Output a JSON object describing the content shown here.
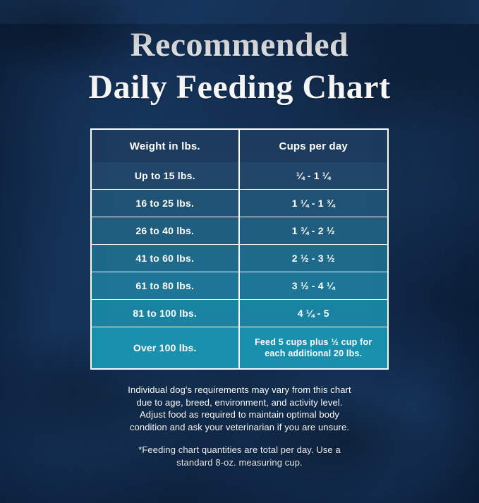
{
  "title": {
    "line1": "Recommended",
    "line2": "Daily Feeding Chart"
  },
  "chart_data": {
    "type": "table",
    "title": "Recommended Daily Feeding Chart",
    "columns": [
      "Weight in lbs.",
      "Cups per day"
    ],
    "rows": [
      [
        "Up to 15 lbs.",
        "¼ - 1 ¼"
      ],
      [
        "16 to 25 lbs.",
        "1 ¼  -  1 ¾"
      ],
      [
        "26 to 40 lbs.",
        "1 ¾  -  2 ½"
      ],
      [
        "41 to 60 lbs.",
        "2 ½  -  3 ½"
      ],
      [
        "61 to 80 lbs.",
        "3 ½  -  4 ¼"
      ],
      [
        "81 to 100 lbs.",
        "4 ¼  -  5"
      ],
      [
        "Over 100 lbs.",
        "Feed 5 cups plus ½ cup for\neach additional 20 lbs."
      ]
    ]
  },
  "footnotes": {
    "para1": "Individual dog's requirements may vary from this chart\ndue to age, breed, environment, and activity level.\nAdjust food as required to maintain optimal body\ncondition and ask your veterinarian if you are unsure.",
    "para2": "*Feeding chart quantities are total per day. Use a\nstandard 8-oz. measuring cup."
  },
  "colors": {
    "background": "#16355c",
    "text": "#ffffff",
    "table_border": "#ffffff",
    "header_bg": "#1d3c5d",
    "row_colors": [
      "#21466a",
      "#1f5273",
      "#1f5e7f",
      "#1e6a8b",
      "#1d7696",
      "#1b83a2",
      "#1990ad"
    ]
  }
}
